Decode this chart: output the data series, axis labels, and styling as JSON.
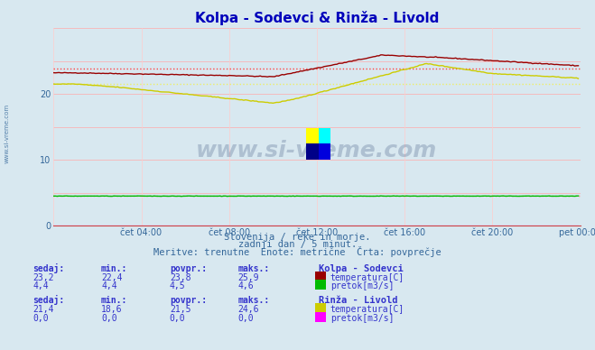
{
  "title": "Kolpa - Sodevci & Rinža - Livold",
  "bg_color": "#d8e8f0",
  "xlabel_ticks": [
    "čet 04:00",
    "čet 08:00",
    "čet 12:00",
    "čet 16:00",
    "čet 20:00",
    "pet 00:00"
  ],
  "ylim": [
    0,
    30
  ],
  "xlim": [
    0,
    288
  ],
  "subtitle1": "Slovenija / reke in morje.",
  "subtitle2": "zadnji dan / 5 minut.",
  "subtitle3": "Meritve: trenutne  Enote: metrične  Črta: povprečje",
  "watermark": "www.si-vreme.com",
  "kolpa_sodevci_label": "Kolpa - Sodevci",
  "rinza_livold_label": "Rinža - Livold",
  "temp_label": "temperatura[C]",
  "pretok_label": "pretok[m3/s]",
  "kolpa_temp_color": "#990000",
  "kolpa_temp_avg_color": "#ff4444",
  "kolpa_pretok_color": "#00bb00",
  "kolpa_pretok_avg_color": "#ff9999",
  "rinza_temp_color": "#cccc00",
  "rinza_temp_avg_color": "#eeee66",
  "rinza_pretok_color": "#ff00ff",
  "kolpa_temp_avg": 23.8,
  "kolpa_pretok_avg": 4.5,
  "rinza_temp_avg": 21.5,
  "grid_color": "#ffaaaa",
  "grid_color_v": "#ffcccc",
  "axis_color": "#cc4444",
  "text_color": "#336699",
  "stats_color": "#3333cc",
  "kolpa_sedaj": "23,2",
  "kolpa_min": "22,4",
  "kolpa_povpr": "23,8",
  "kolpa_maks": "25,9",
  "kolpa_pretok_sedaj": "4,4",
  "kolpa_pretok_min": "4,4",
  "kolpa_pretok_povpr": "4,5",
  "kolpa_pretok_maks": "4,6",
  "rinza_sedaj": "21,4",
  "rinza_min": "18,6",
  "rinza_povpr": "21,5",
  "rinza_maks": "24,6",
  "rinza_pretok_sedaj": "0,0",
  "rinza_pretok_min": "0,0",
  "rinza_pretok_povpr": "0,0",
  "rinza_pretok_maks": "0,0"
}
